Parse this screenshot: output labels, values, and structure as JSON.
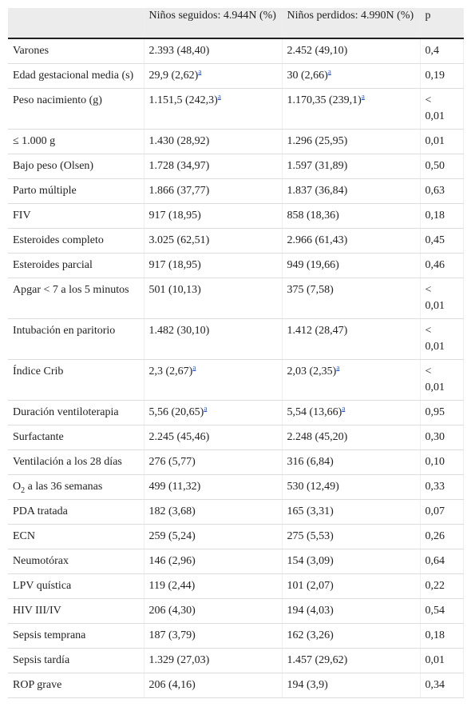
{
  "table": {
    "header": [
      "Niños seguidos: 4.944N (%)",
      "Niños perdidos: 4.990N (%)",
      "p"
    ],
    "rows": [
      [
        "Varones",
        "2.393 (48,40)",
        "2.452 (49,10)",
        "0,4"
      ],
      [
        "Edad gestacional media (s)",
        {
          "text": "29,9 (2,62)",
          "sup": "a"
        },
        {
          "text": "30 (2,66)",
          "sup": "a"
        },
        "0,19"
      ],
      [
        "Peso nacimiento (g)",
        {
          "text": "1.151,5 (242,3)",
          "sup": "a"
        },
        {
          "text": "1.170,35 (239,1)",
          "sup": "a"
        },
        "< 0,01"
      ],
      [
        "≤ 1.000 g",
        "1.430 (28,92)",
        "1.296 (25,95)",
        "0,01"
      ],
      [
        "Bajo peso (Olsen)",
        "1.728 (34,97)",
        "1.597 (31,89)",
        "0,50"
      ],
      [
        "Parto múltiple",
        "1.866 (37,77)",
        "1.837 (36,84)",
        "0,63"
      ],
      [
        "FIV",
        "917 (18,95)",
        "858 (18,36)",
        "0,18"
      ],
      [
        "Esteroides completo",
        "3.025 (62,51)",
        "2.966 (61,43)",
        "0,45"
      ],
      [
        "Esteroides parcial",
        "917 (18,95)",
        "949 (19,66)",
        "0,46"
      ],
      [
        "Apgar < 7 a los 5 minutos",
        "501 (10,13)",
        "375 (7,58)",
        "< 0,01"
      ],
      [
        "Intubación en paritorio",
        "1.482 (30,10)",
        "1.412 (28,47)",
        "< 0,01"
      ],
      [
        "Índice Crib",
        {
          "text": "2,3 (2,67)",
          "sup": "a"
        },
        {
          "text": "2,03 (2,35)",
          "sup": "a"
        },
        "< 0,01"
      ],
      [
        "Duración ventiloterapia",
        {
          "text": "5,56 (20,65)",
          "sup": "a"
        },
        {
          "text": "5,54 (13,66)",
          "sup": "a"
        },
        "0,95"
      ],
      [
        "Surfactante",
        "2.245 (45,46)",
        "2.248 (45,20)",
        "0,30"
      ],
      [
        "Ventilación a los 28 días",
        "276 (5,77)",
        "316 (6,84)",
        "0,10"
      ],
      [
        {
          "text": "O",
          "sub": "2",
          "rest": " a las 36 semanas"
        },
        "499 (11,32)",
        "530 (12,49)",
        "0,33"
      ],
      [
        "PDA tratada",
        "182 (3,68)",
        "165 (3,31)",
        "0,07"
      ],
      [
        "ECN",
        "259 (5,24)",
        "275 (5,53)",
        "0,26"
      ],
      [
        "Neumotórax",
        "146 (2,96)",
        "154 (3,09)",
        "0,64"
      ],
      [
        "LPV quística",
        "119 (2,44)",
        "101 (2,07)",
        "0,22"
      ],
      [
        "HIV III/IV",
        "206 (4,30)",
        "194 (4,03)",
        "0,54"
      ],
      [
        "Sepsis temprana",
        "187 (3,79)",
        "162 (3,26)",
        "0,18"
      ],
      [
        "Sepsis tardía",
        "1.329 (27,03)",
        "1.457 (29,62)",
        "0,01"
      ],
      [
        "ROP grave",
        "206 (4,16)",
        "194 (3,9)",
        "0,34"
      ]
    ]
  }
}
